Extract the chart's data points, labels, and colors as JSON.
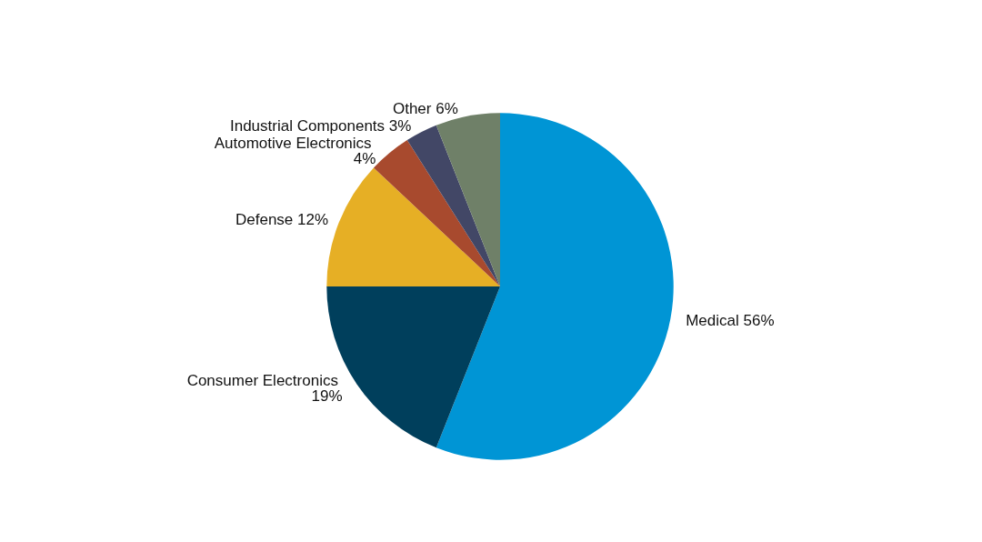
{
  "chart_data": {
    "type": "pie",
    "categories": [
      "Medical",
      "Consumer Electronics",
      "Defense",
      "Automotive Electronics",
      "Industrial Components",
      "Other"
    ],
    "values": [
      56,
      19,
      12,
      4,
      3,
      6
    ],
    "value_labels": [
      "56%",
      "19%",
      "12%",
      "4%",
      "3%",
      "6%"
    ],
    "colors": [
      "#0095d5",
      "#003f5c",
      "#e6af25",
      "#a84a2e",
      "#424766",
      "#6f8068"
    ],
    "legend": false
  }
}
